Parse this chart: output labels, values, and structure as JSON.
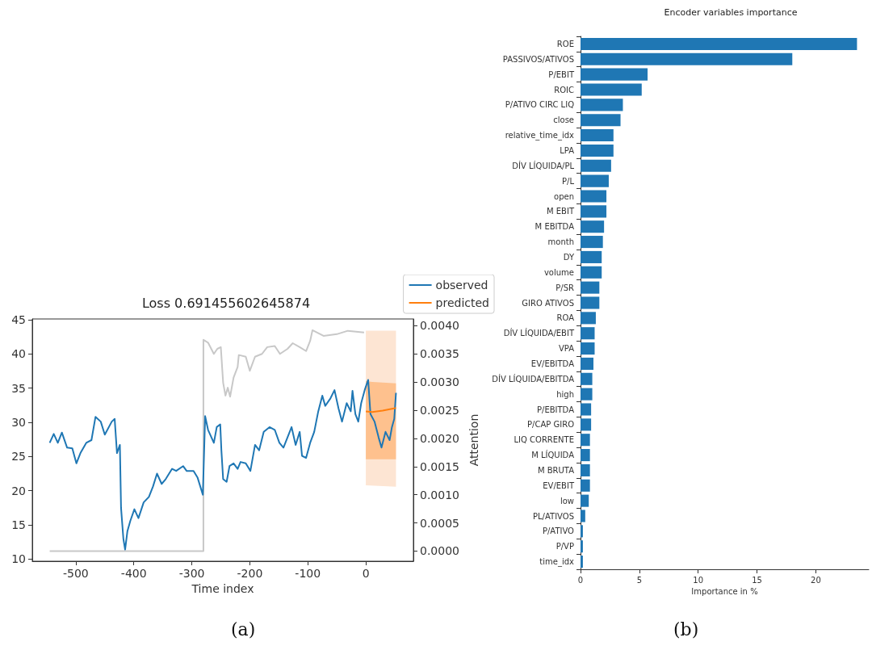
{
  "chart_data": [
    {
      "type": "line",
      "title": "Loss 0.691455602645874",
      "xlabel": "Time index",
      "y2label": "Attention",
      "xlim": [
        -575,
        82
      ],
      "xticks": [
        -500,
        -400,
        -300,
        -200,
        -100,
        0
      ],
      "ylim": [
        9.7,
        45.1
      ],
      "yticks": [
        10,
        15,
        20,
        25,
        30,
        35,
        40,
        45
      ],
      "y2lim": [
        -0.00018,
        0.00412
      ],
      "y2ticks": [
        {
          "value": 0,
          "label": "0.0000"
        },
        {
          "value": 0.0005,
          "label": "0.0005"
        },
        {
          "value": 0.001,
          "label": "0.0010"
        },
        {
          "value": 0.0015,
          "label": "0.0015"
        },
        {
          "value": 0.002,
          "label": "0.0020"
        },
        {
          "value": 0.0025,
          "label": "0.0025"
        },
        {
          "value": 0.003,
          "label": "0.0030"
        },
        {
          "value": 0.0035,
          "label": "0.0035"
        },
        {
          "value": 0.004,
          "label": "0.0040"
        }
      ],
      "legend": "top right",
      "grid": false,
      "marker": "none",
      "line_style": "solid",
      "annotations": [
        "(a)"
      ],
      "series": [
        {
          "color": "#fde5d3",
          "x": [
            0,
            52
          ],
          "values": [
            null,
            null
          ],
          "lower": [
            20.8,
            20.6
          ],
          "upper": [
            43.4,
            43.4
          ]
        },
        {
          "color": "#c8c8c8",
          "axis": "y2",
          "x": [
            -545,
            -280,
            -280,
            -272,
            -262,
            -256,
            -250,
            -246,
            -242,
            -238,
            -234,
            -228,
            -221,
            -219,
            -207,
            -200,
            -191,
            -179,
            -170,
            -157,
            -148,
            -135,
            -126,
            -114,
            -103,
            -96,
            -92,
            -73,
            -50,
            -31,
            -3
          ],
          "values": [
            0,
            0,
            0.00375,
            0.0037,
            0.0035,
            0.00359,
            0.00362,
            0.00299,
            0.00276,
            0.0029,
            0.00274,
            0.00308,
            0.00327,
            0.00348,
            0.00345,
            0.0032,
            0.00345,
            0.0035,
            0.00362,
            0.00364,
            0.0035,
            0.00359,
            0.00369,
            0.00362,
            0.00355,
            0.00373,
            0.00392,
            0.00382,
            0.00385,
            0.00391,
            0.00388
          ]
        },
        {
          "name": "observed",
          "color": "#1f77b4",
          "x": [
            -545,
            -538,
            -531,
            -524,
            -515,
            -506,
            -499,
            -492,
            -482,
            -473,
            -466,
            -457,
            -450,
            -438,
            -433,
            -429,
            -424,
            -422,
            -418,
            -415,
            -411,
            -406,
            -399,
            -392,
            -383,
            -374,
            -367,
            -360,
            -352,
            -345,
            -334,
            -327,
            -315,
            -309,
            -297,
            -290,
            -281,
            -277,
            -272,
            -262,
            -257,
            -251,
            -249,
            -246,
            -240,
            -235,
            -228,
            -221,
            -216,
            -207,
            -199,
            -191,
            -184,
            -176,
            -166,
            -157,
            -149,
            -142,
            -135,
            -128,
            -121,
            -114,
            -110,
            -103,
            -96,
            -89,
            -82,
            -75,
            -70,
            -61,
            -54,
            -47,
            -41,
            -33,
            -26,
            -23,
            -18,
            -13,
            -8,
            -2,
            4,
            8,
            15,
            22,
            27,
            34,
            41,
            45,
            49,
            52
          ],
          "values": [
            27.0,
            28.3,
            27.0,
            28.5,
            26.3,
            26.2,
            24.0,
            25.5,
            27.0,
            27.4,
            30.8,
            30.1,
            28.2,
            30.1,
            30.5,
            25.5,
            26.7,
            17.5,
            13.0,
            11.4,
            14.1,
            15.6,
            17.3,
            16.0,
            18.3,
            19.1,
            20.6,
            22.5,
            21.0,
            21.7,
            23.2,
            22.9,
            23.6,
            22.9,
            22.9,
            21.9,
            19.4,
            30.9,
            28.9,
            27.0,
            29.3,
            29.7,
            25.9,
            21.7,
            21.3,
            23.6,
            24.0,
            23.2,
            24.2,
            24.0,
            22.9,
            26.7,
            25.9,
            28.6,
            29.3,
            28.9,
            27.0,
            26.3,
            27.8,
            29.3,
            26.7,
            28.6,
            25.1,
            24.8,
            27.0,
            28.6,
            31.6,
            33.9,
            32.4,
            33.5,
            34.7,
            32.0,
            30.1,
            32.8,
            31.6,
            34.6,
            31.2,
            30.1,
            32.8,
            34.7,
            36.2,
            31.2,
            30.1,
            27.8,
            26.3,
            28.6,
            27.4,
            29.3,
            30.5,
            34.3
          ]
        },
        {
          "name": "predicted",
          "color": "#ff7f0e",
          "x": [
            0,
            11,
            29,
            52
          ],
          "values": [
            31.6,
            31.5,
            31.7,
            32.1
          ],
          "lower": [
            24.6,
            24.6,
            24.6,
            24.6
          ],
          "upper": [
            36.0,
            35.9,
            35.8,
            35.7
          ]
        }
      ]
    },
    {
      "type": "bar",
      "orientation": "horizontal",
      "title": "Encoder variables importance",
      "xlabel": "Importance in %",
      "xlim": [
        0,
        24.5
      ],
      "xticks": [
        0,
        5,
        10,
        15,
        20
      ],
      "grid": false,
      "legend": false,
      "annotations": [
        "(b)"
      ],
      "categories": [
        "ROE",
        "PASSIVOS/ATIVOS",
        "P/EBIT",
        "ROIC",
        "P/ATIVO CIRC LIQ",
        "close",
        "relative_time_idx",
        "LPA",
        "DÍV LÍQUIDA/PL",
        "P/L",
        "open",
        "M EBIT",
        "M EBITDA",
        "month",
        "DY",
        "volume",
        "P/SR",
        "GIRO ATIVOS",
        "ROA",
        "DÍV LÍQUIDA/EBIT",
        "VPA",
        "EV/EBITDA",
        "DÍV LÍQUIDA/EBITDA",
        "high",
        "P/EBITDA",
        "P/CAP GIRO",
        "LIQ CORRENTE",
        "M LÍQUIDA",
        "M BRUTA",
        "EV/EBIT",
        "low",
        "PL/ATIVOS",
        "P/ATIVO",
        "P/VP",
        "time_idx"
      ],
      "series": [
        {
          "color": "#1f77b4",
          "values": [
            23.5,
            18.0,
            5.7,
            5.2,
            3.6,
            3.4,
            2.8,
            2.8,
            2.6,
            2.4,
            2.2,
            2.2,
            2.0,
            1.9,
            1.8,
            1.8,
            1.6,
            1.6,
            1.3,
            1.2,
            1.2,
            1.1,
            1.0,
            1.0,
            0.9,
            0.9,
            0.8,
            0.8,
            0.8,
            0.8,
            0.7,
            0.4,
            0.2,
            0.2,
            0.2
          ]
        }
      ]
    }
  ]
}
